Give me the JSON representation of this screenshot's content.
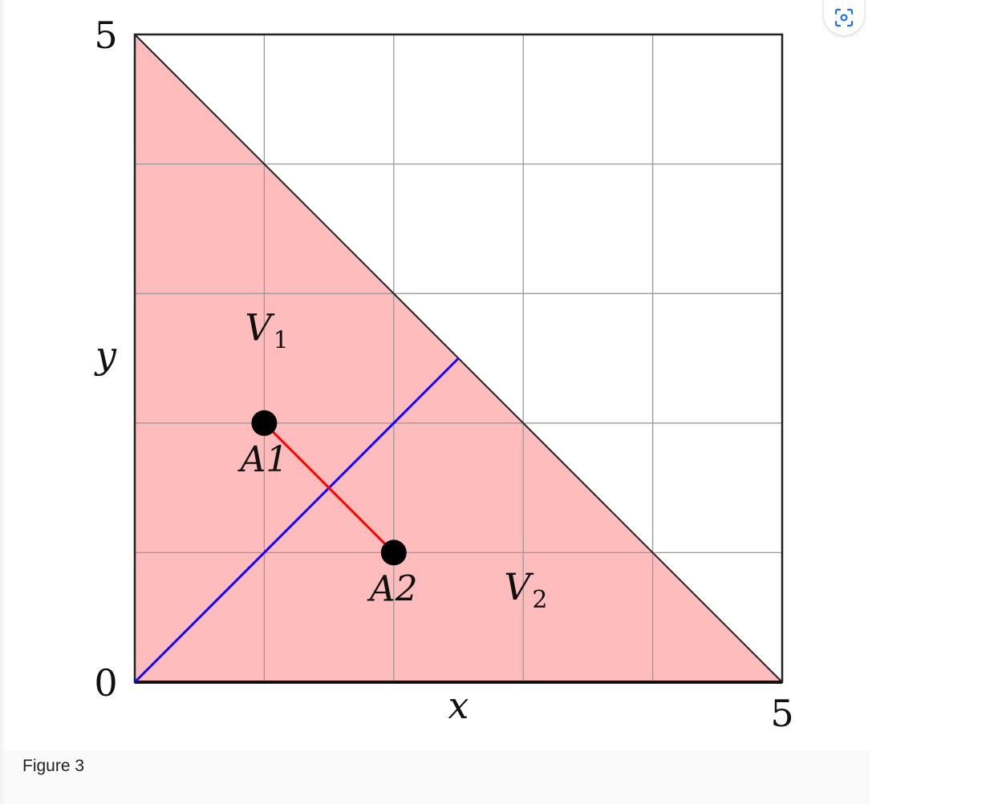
{
  "figure": {
    "caption": "Figure 3",
    "lens_icon": "lens-scan-icon",
    "accent_color": "#1a73e8"
  },
  "chart_data": {
    "type": "diagram",
    "xlim": [
      0,
      5
    ],
    "ylim": [
      0,
      5
    ],
    "grid": true,
    "grid_step": 1,
    "x_label": "x",
    "y_label": "y",
    "x_tick_labels": [
      {
        "value": 5,
        "label": "5"
      }
    ],
    "y_tick_labels": [
      {
        "value": 0,
        "label": "0"
      },
      {
        "value": 5,
        "label": "5"
      }
    ],
    "shaded_region": {
      "vertices": [
        [
          0,
          0
        ],
        [
          5,
          0
        ],
        [
          0,
          5
        ]
      ],
      "color": "#ffbcbc"
    },
    "lines": [
      {
        "name": "boundary",
        "from": [
          0,
          5
        ],
        "to": [
          5,
          0
        ],
        "color": "#222222"
      },
      {
        "name": "bisector",
        "from": [
          0,
          0
        ],
        "to": [
          2.5,
          2.5
        ],
        "color": "#1400ff"
      },
      {
        "name": "segment",
        "from": [
          1,
          2
        ],
        "to": [
          2,
          1
        ],
        "color": "#ff0000"
      }
    ],
    "points": [
      {
        "label": "A1",
        "x": 1,
        "y": 2
      },
      {
        "label": "A2",
        "x": 2,
        "y": 1
      }
    ],
    "region_labels": [
      {
        "base": "V",
        "sub": "1",
        "x": 1.0,
        "y": 2.75
      },
      {
        "base": "V",
        "sub": "2",
        "x": 3.0,
        "y": 0.75
      }
    ]
  }
}
